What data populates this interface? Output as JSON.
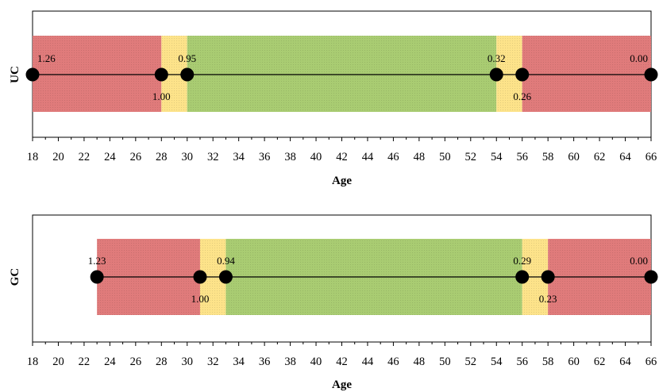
{
  "chart_data": [
    {
      "type": "range",
      "row_label": "UC",
      "xlabel": "Age",
      "xlim": [
        18,
        66
      ],
      "x_ticks": [
        18,
        20,
        22,
        24,
        26,
        28,
        30,
        32,
        34,
        36,
        38,
        40,
        42,
        44,
        46,
        48,
        50,
        52,
        54,
        56,
        58,
        60,
        62,
        64,
        66
      ],
      "bands": [
        {
          "from": 18,
          "to": 28,
          "color": "#e07b7b"
        },
        {
          "from": 28,
          "to": 30,
          "color": "#fde38a"
        },
        {
          "from": 30,
          "to": 54,
          "color": "#a9cc72"
        },
        {
          "from": 54,
          "to": 56,
          "color": "#fde38a"
        },
        {
          "from": 56,
          "to": 66,
          "color": "#e07b7b"
        }
      ],
      "points": [
        {
          "x": 18,
          "label": "1.26",
          "pos": "above-right"
        },
        {
          "x": 28,
          "label": "1.00",
          "pos": "below"
        },
        {
          "x": 30,
          "label": "0.95",
          "pos": "above"
        },
        {
          "x": 54,
          "label": "0.32",
          "pos": "above"
        },
        {
          "x": 56,
          "label": "0.26",
          "pos": "below"
        },
        {
          "x": 66,
          "label": "0.00",
          "pos": "above-left"
        }
      ]
    },
    {
      "type": "range",
      "row_label": "GC",
      "xlabel": "Age",
      "xlim": [
        18,
        66
      ],
      "x_ticks": [
        18,
        20,
        22,
        24,
        26,
        28,
        30,
        32,
        34,
        36,
        38,
        40,
        42,
        44,
        46,
        48,
        50,
        52,
        54,
        56,
        58,
        60,
        62,
        64,
        66
      ],
      "bands": [
        {
          "from": 23,
          "to": 31,
          "color": "#e07b7b"
        },
        {
          "from": 31,
          "to": 33,
          "color": "#fde38a"
        },
        {
          "from": 33,
          "to": 56,
          "color": "#a9cc72"
        },
        {
          "from": 56,
          "to": 58,
          "color": "#fde38a"
        },
        {
          "from": 58,
          "to": 66,
          "color": "#e07b7b"
        }
      ],
      "points": [
        {
          "x": 23,
          "label": "1.23",
          "pos": "above"
        },
        {
          "x": 31,
          "label": "1.00",
          "pos": "below"
        },
        {
          "x": 33,
          "label": "0.94",
          "pos": "above"
        },
        {
          "x": 56,
          "label": "0.29",
          "pos": "above"
        },
        {
          "x": 58,
          "label": "0.23",
          "pos": "below"
        },
        {
          "x": 66,
          "label": "0.00",
          "pos": "above-left"
        }
      ]
    }
  ]
}
